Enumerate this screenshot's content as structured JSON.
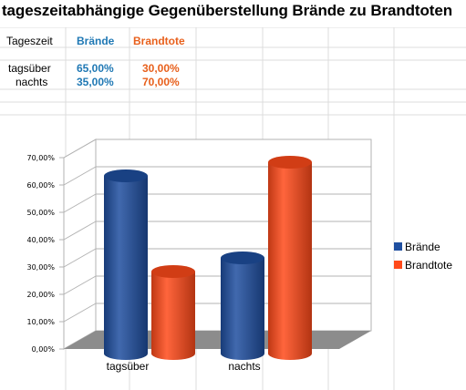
{
  "sheet": {
    "title": "tageszeitabhängige Gegenüberstellung Brände zu Brandtoten",
    "header": {
      "label": "Tageszeit",
      "col_b": "Brände",
      "col_t": "Brandtote"
    },
    "rows": [
      {
        "label": "tagsüber",
        "b": "65,00%",
        "t": "30,00%"
      },
      {
        "label": "nachts",
        "b": "35,00%",
        "t": "70,00%"
      }
    ]
  },
  "chart_data": {
    "type": "bar",
    "title": "",
    "xlabel": "",
    "ylabel": "",
    "categories": [
      "tagsüber",
      "nachts"
    ],
    "series": [
      {
        "name": "Brände",
        "values": [
          65,
          35
        ],
        "color": "#1f4fa0"
      },
      {
        "name": "Brandtote",
        "values": [
          30,
          70
        ],
        "color": "#ff4a1a"
      }
    ],
    "ylim": [
      0,
      70
    ],
    "yticks": [
      "0,00%",
      "10,00%",
      "20,00%",
      "30,00%",
      "40,00%",
      "50,00%",
      "60,00%",
      "70,00%"
    ],
    "grid": true,
    "legend": "right",
    "three_d": true
  }
}
